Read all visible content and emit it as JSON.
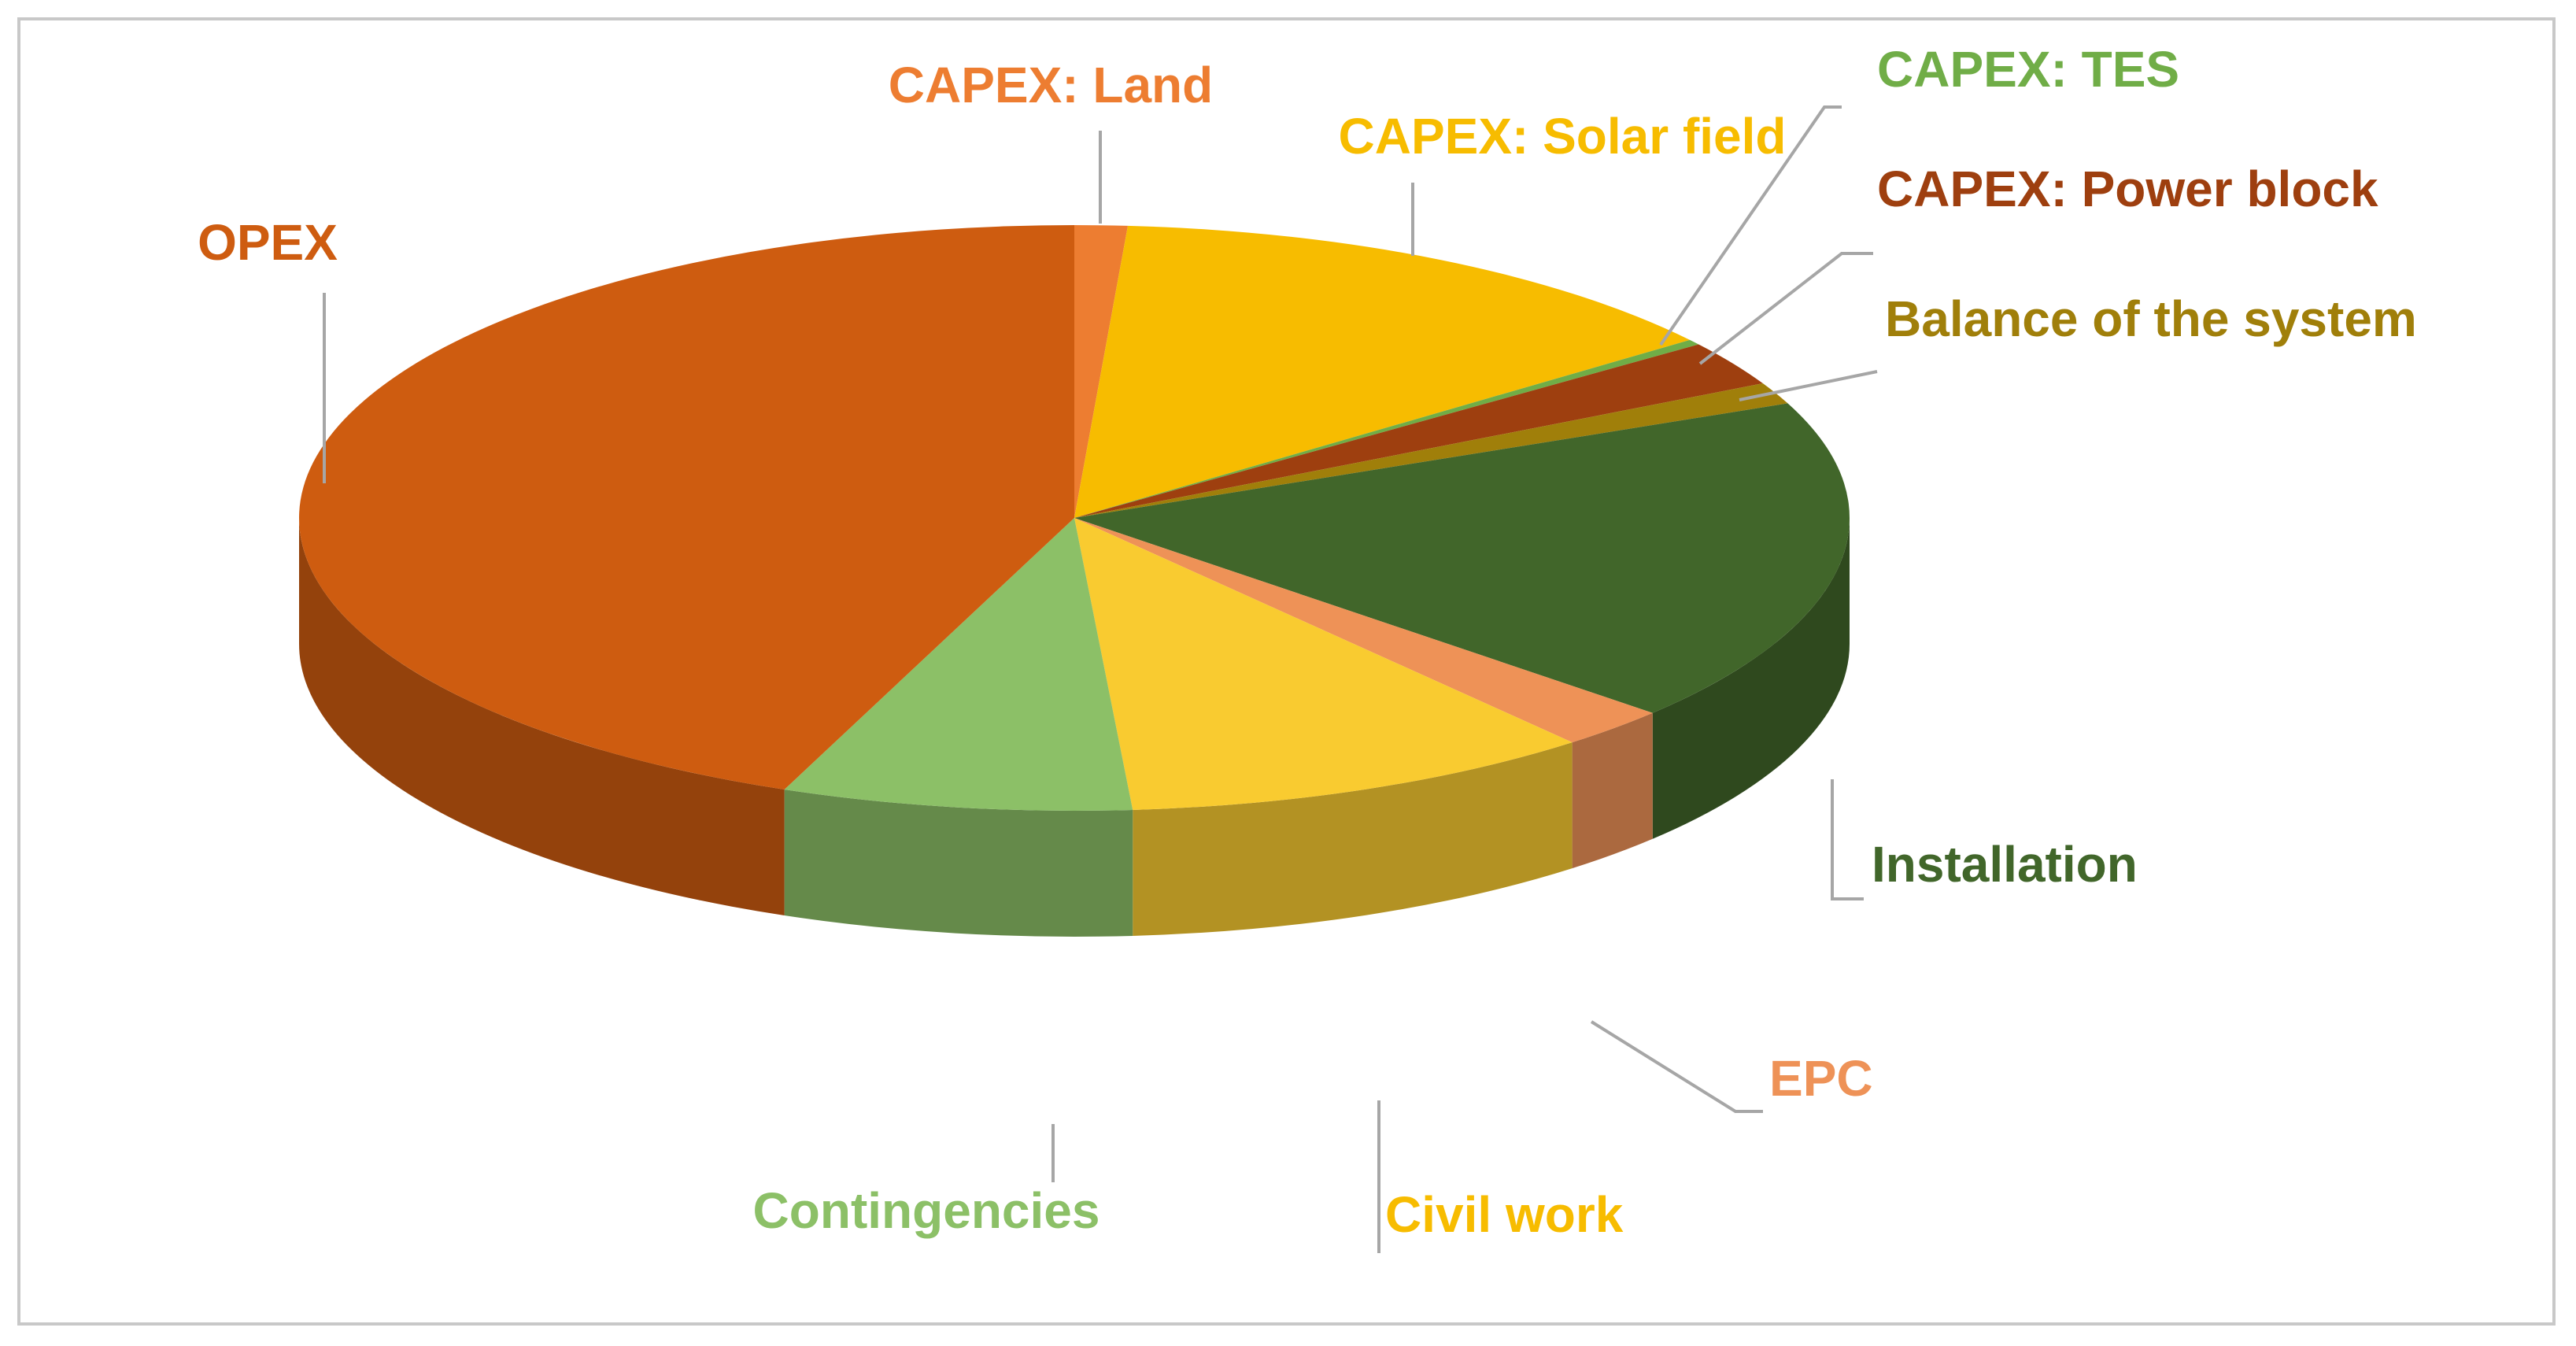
{
  "chart_data": {
    "type": "pie",
    "style": "3d-exploded-flat",
    "start_angle_deg": -90,
    "direction": "clockwise",
    "slices": [
      {
        "label": "CAPEX: Land",
        "value": 1.1,
        "color": "#ED7D31"
      },
      {
        "label": "CAPEX: Solar field",
        "value": 13.5,
        "color": "#F7BC00"
      },
      {
        "label": "CAPEX: TES",
        "value": 0.3,
        "color": "#70AD47"
      },
      {
        "label": "CAPEX: Power block",
        "value": 2.5,
        "color": "#9E3F0F"
      },
      {
        "label": "Balance of the system",
        "value": 1.2,
        "color": "#A07F0A"
      },
      {
        "label": "Installation",
        "value": 18.0,
        "color": "#41662A"
      },
      {
        "label": "EPC",
        "value": 2.3,
        "color": "#EE9257"
      },
      {
        "label": "Civil work",
        "value": 9.9,
        "color": "#F9CB30"
      },
      {
        "label": "Contingencies",
        "value": 7.3,
        "color": "#8CC067"
      },
      {
        "label": "OPEX",
        "value": 43.9,
        "color": "#CE5C10"
      }
    ],
    "legend": "none"
  }
}
